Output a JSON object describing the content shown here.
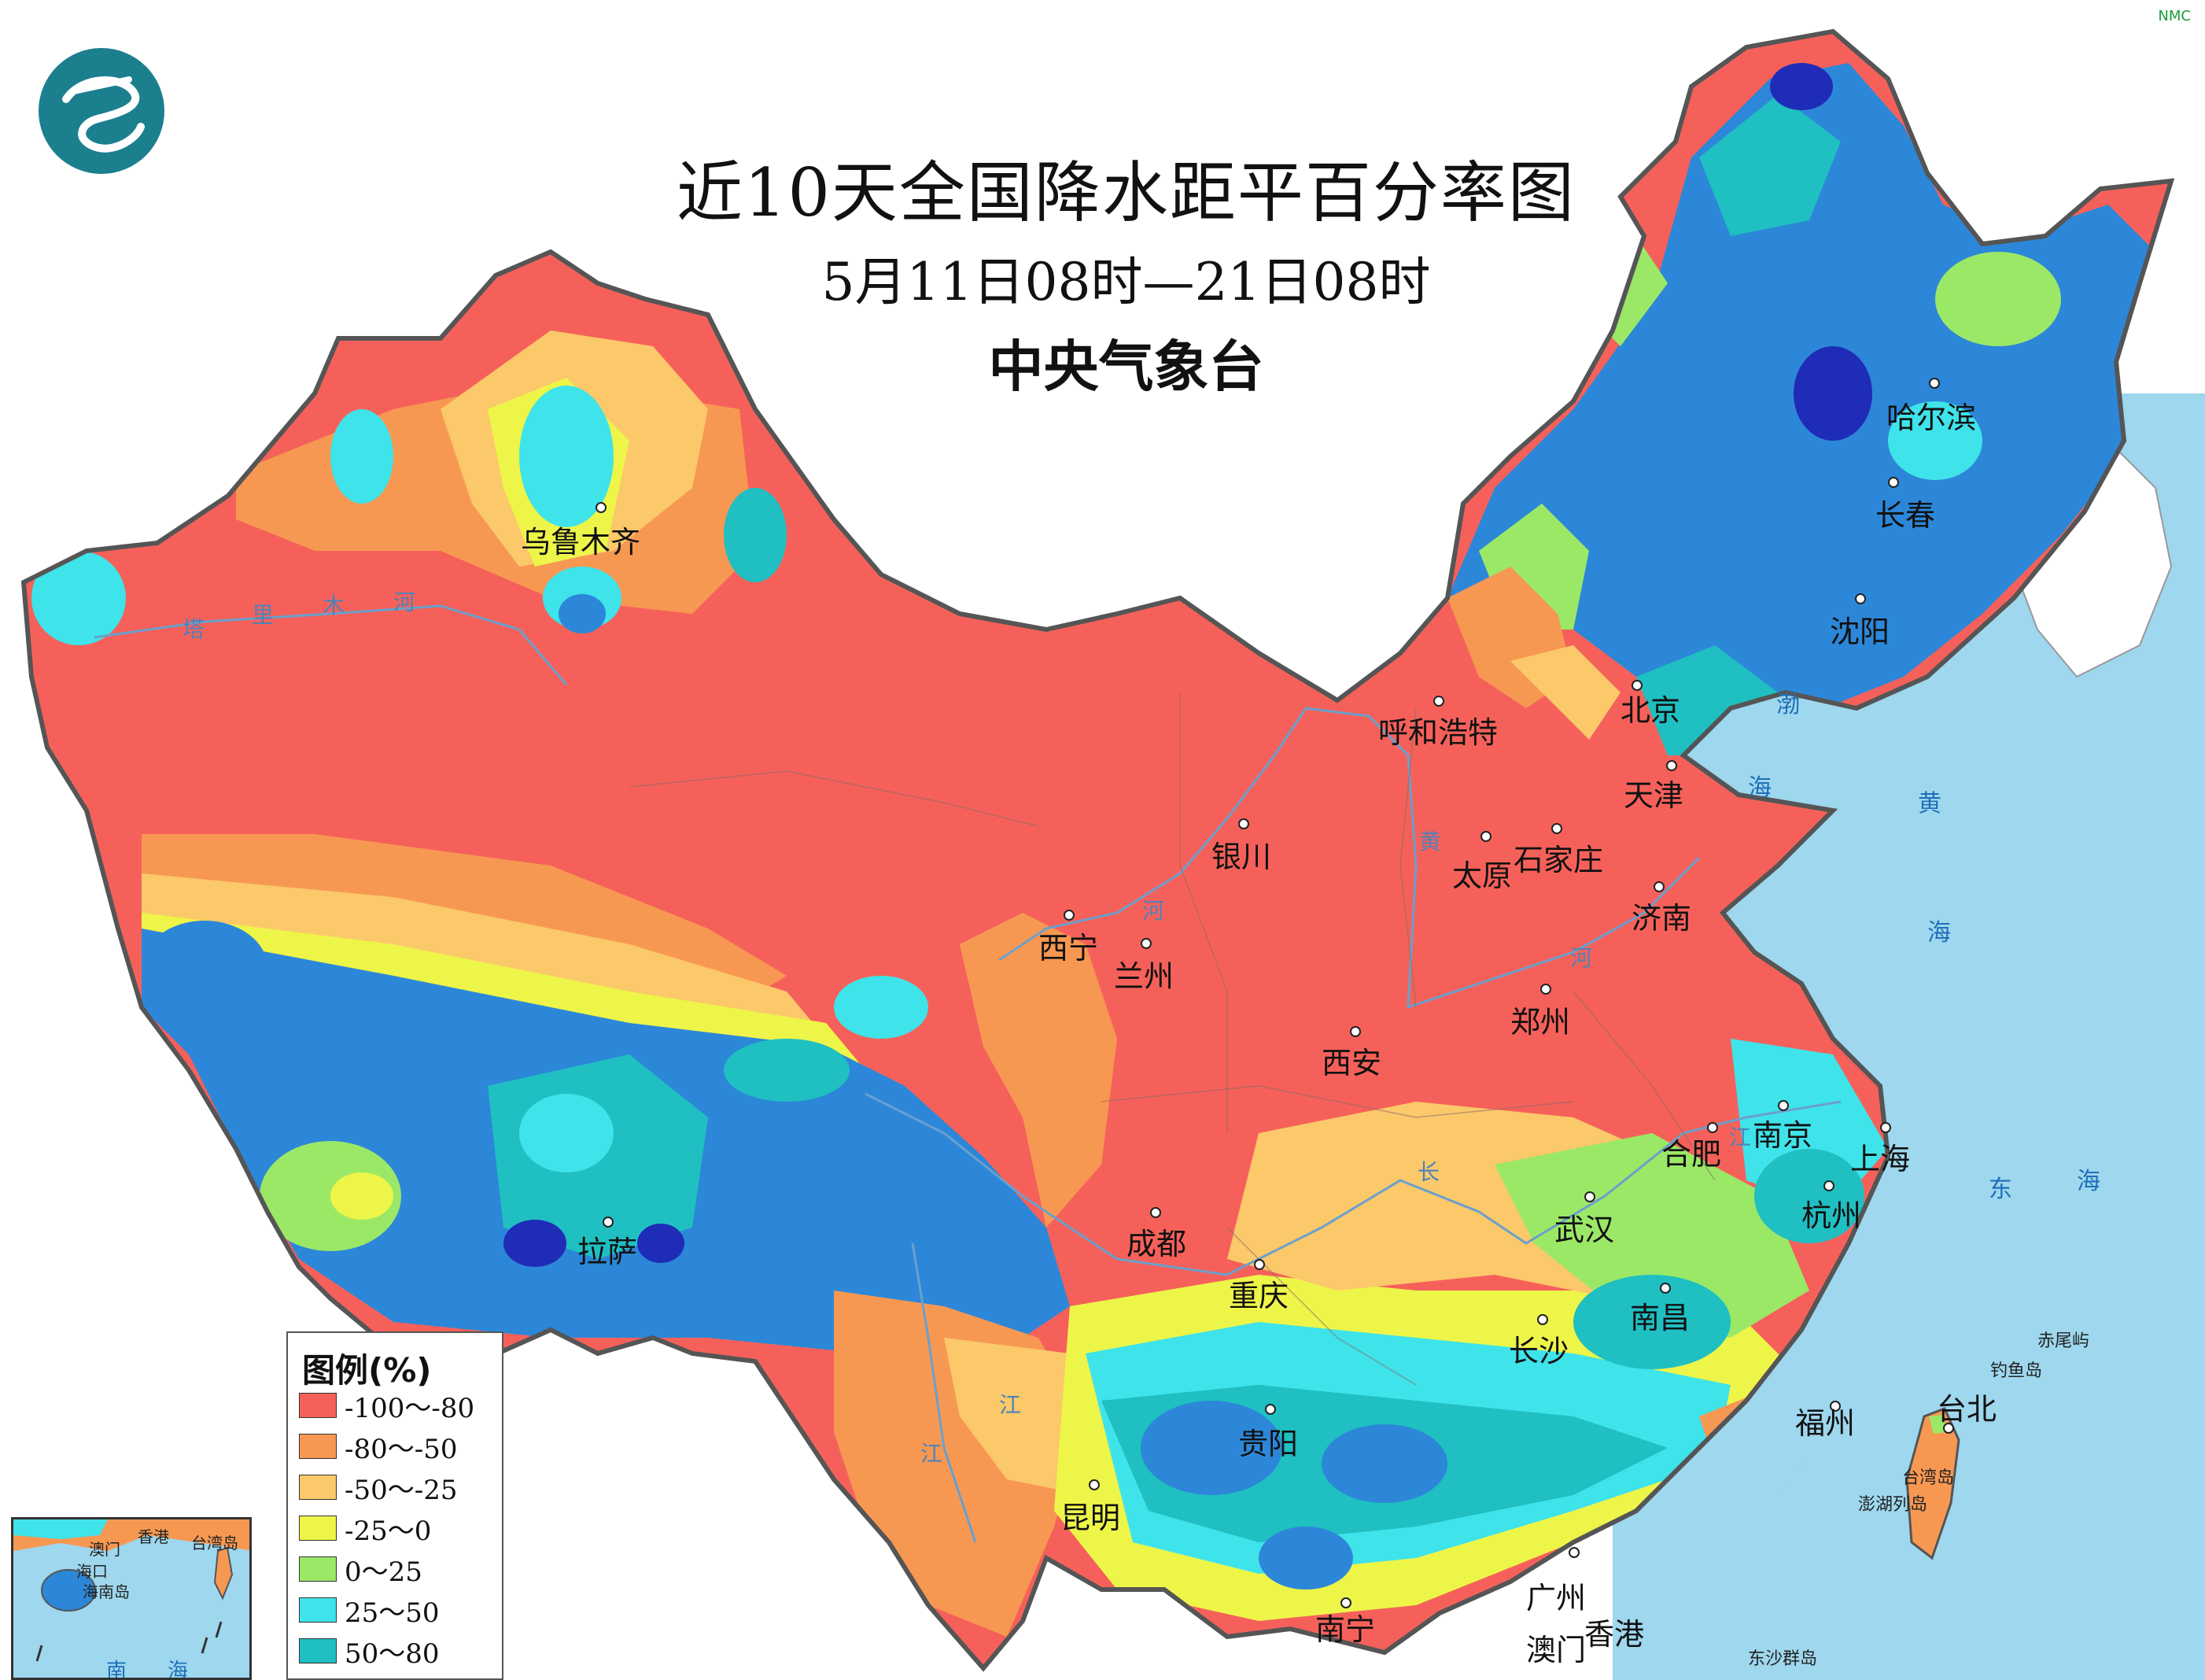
{
  "header": {
    "title": "近10天全国降水距平百分率图",
    "subtitle": "5月11日08时—21日08时",
    "organization": "中央气象台",
    "watermark": "NMC"
  },
  "colors": {
    "sea": "#9ed7ee",
    "background": "#ffffff",
    "border": "#555555"
  },
  "legend": {
    "title": "图例(%)",
    "items": [
      {
        "label": "-100～-80",
        "color": "#f5615a"
      },
      {
        "label": "-80～-50",
        "color": "#f79852"
      },
      {
        "label": "-50～-25",
        "color": "#fbc86a"
      },
      {
        "label": "-25～0",
        "color": "#eef549"
      },
      {
        "label": "0～25",
        "color": "#9be867"
      },
      {
        "label": "25～50",
        "color": "#3fe3ea"
      },
      {
        "label": "50～80",
        "color": "#1fbfc2"
      }
    ]
  },
  "cities": {
    "urumqi": "乌鲁木齐",
    "harbin": "哈尔滨",
    "changchun": "长春",
    "shenyang": "沈阳",
    "beijing": "北京",
    "tianjin": "天津",
    "hohhot": "呼和浩特",
    "yinchuan": "银川",
    "taiyuan": "太原",
    "shijiazhuang": "石家庄",
    "jinan": "济南",
    "xining": "西宁",
    "lanzhou": "兰州",
    "zhengzhou": "郑州",
    "xian": "西安",
    "hefei": "合肥",
    "nanjing": "南京",
    "shanghai": "上海",
    "hangzhou": "杭州",
    "wuhan": "武汉",
    "chengdu": "成都",
    "chongqing": "重庆",
    "lhasa": "拉萨",
    "changsha": "长沙",
    "nanchang": "南昌",
    "guiyang": "贵阳",
    "fuzhou": "福州",
    "taipei": "台北",
    "kunming": "昆明",
    "nanning": "南宁",
    "guangzhou": "广州",
    "hongkong": "香港",
    "macau": "澳门"
  },
  "seas": {
    "bo1": "渤",
    "bo2": "海",
    "huang1": "黄",
    "huang2": "海",
    "dong1": "东",
    "dong2": "海"
  },
  "rivers": {
    "tarim1": "塔",
    "tarim2": "里",
    "tarim3": "木",
    "tarim4": "河",
    "yellow1": "黄",
    "yellow2": "河",
    "yellow3": "河",
    "yangtze1": "长",
    "yangtze2": "江",
    "lancang1": "江",
    "lancang2": "江"
  },
  "islands": {
    "taiwan": "台湾岛",
    "chiwei": "赤尾屿",
    "diaoyu": "钓鱼岛",
    "penghu": "澎湖列岛",
    "dongsha": "东沙群岛"
  },
  "inset": {
    "hongkong": "香港",
    "macau": "澳门",
    "taiwan": "台湾岛",
    "haikou": "海口",
    "hainan": "海南岛",
    "nan": "南",
    "hai": "海"
  }
}
